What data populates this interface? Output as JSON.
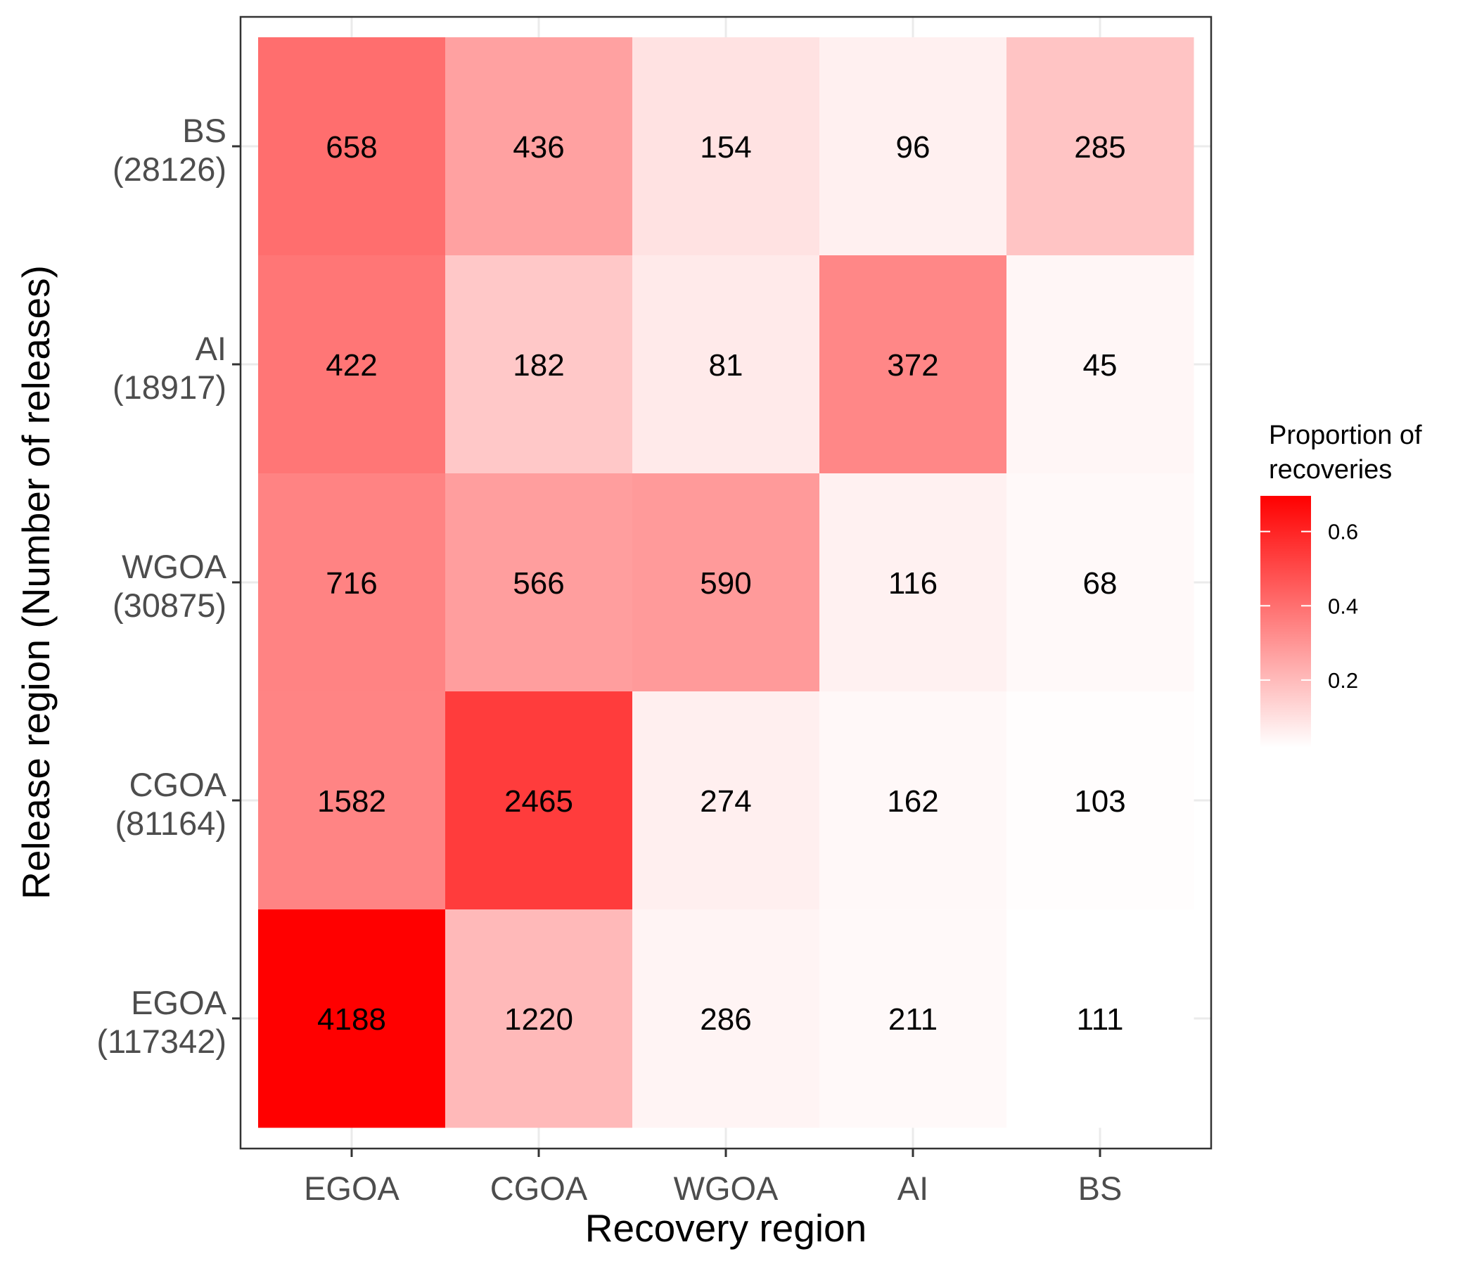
{
  "chart_data": {
    "type": "heatmap",
    "title": "",
    "xlabel": "Recovery region",
    "ylabel": "Release region (Number of releases)",
    "x_categories": [
      "EGOA",
      "CGOA",
      "WGOA",
      "AI",
      "BS"
    ],
    "y_categories": [
      {
        "name": "BS",
        "releases": "(28126)"
      },
      {
        "name": "AI",
        "releases": "(18917)"
      },
      {
        "name": "WGOA",
        "releases": "(30875)"
      },
      {
        "name": "CGOA",
        "releases": "(81164)"
      },
      {
        "name": "EGOA",
        "releases": "(117342)"
      }
    ],
    "values": [
      [
        658,
        436,
        154,
        96,
        285
      ],
      [
        422,
        182,
        81,
        372,
        45
      ],
      [
        716,
        566,
        590,
        116,
        68
      ],
      [
        1582,
        2465,
        274,
        162,
        103
      ],
      [
        4188,
        1220,
        286,
        211,
        111
      ]
    ],
    "fill_metric": "row proportion (value / row total recoveries)",
    "legend": {
      "title_lines": [
        "Proportion of",
        "recoveries"
      ],
      "ticks": [
        "0.2",
        "0.4",
        "0.6"
      ],
      "tick_values": [
        0.2,
        0.4,
        0.6
      ],
      "range": [
        0.018,
        0.696
      ],
      "low_color": "#FFFFFF",
      "high_color": "#FF0000",
      "placement": "right"
    },
    "grid": true,
    "panel_border": true
  }
}
